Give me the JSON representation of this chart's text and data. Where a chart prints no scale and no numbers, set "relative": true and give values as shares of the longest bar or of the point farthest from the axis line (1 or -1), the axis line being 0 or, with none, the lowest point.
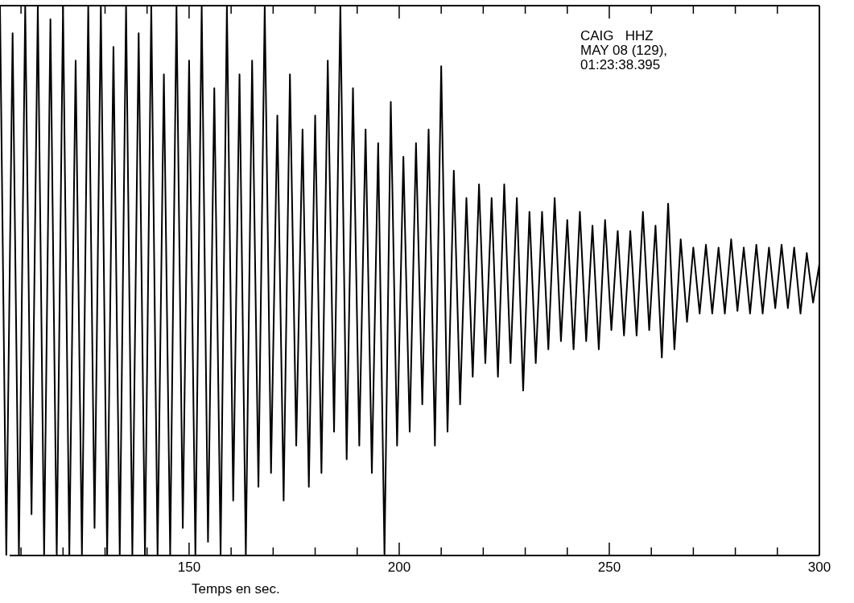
{
  "chart_data": {
    "type": "line",
    "relative": true,
    "xlabel": "Temps en sec.",
    "annotations": [
      "CAIG   HHZ",
      "MAY 08 (129),",
      "01:23:38.395"
    ],
    "xlim": [
      105,
      300
    ],
    "xticks": [
      {
        "value": 110,
        "label": null
      },
      {
        "value": 120,
        "label": null
      },
      {
        "value": 130,
        "label": null
      },
      {
        "value": 140,
        "label": null
      },
      150,
      {
        "value": 160,
        "label": null
      },
      {
        "value": 170,
        "label": null
      },
      {
        "value": 180,
        "label": null
      },
      {
        "value": 190,
        "label": null
      },
      200,
      {
        "value": 210,
        "label": null
      },
      {
        "value": 220,
        "label": null
      },
      {
        "value": 230,
        "label": null
      },
      {
        "value": 240,
        "label": null
      },
      250,
      {
        "value": 260,
        "label": null
      },
      {
        "value": 270,
        "label": null
      },
      {
        "value": 280,
        "label": null
      },
      {
        "value": 290,
        "label": null
      },
      300
    ],
    "grid": false,
    "marker": "none",
    "line_style": "solid",
    "series": [
      {
        "color": "#000000",
        "x": [
          105,
          106.5,
          108,
          109.5,
          111,
          112.5,
          114,
          115.5,
          117,
          118.5,
          120,
          121.5,
          123,
          124.5,
          126,
          127.5,
          129,
          130.5,
          132,
          133.5,
          135,
          136.5,
          138,
          139.5,
          141,
          142.5,
          144,
          145.5,
          147,
          148.5,
          150,
          151.5,
          153,
          154.5,
          156,
          157.5,
          159,
          160.5,
          162,
          163.5,
          165,
          166.5,
          168,
          169.5,
          171,
          172.5,
          174,
          175.5,
          177,
          178.5,
          180,
          181.5,
          183,
          184.5,
          186,
          187.5,
          189,
          190.5,
          192,
          193.5,
          195,
          196.5,
          198,
          199.5,
          201,
          202.5,
          204,
          205.5,
          207,
          208.5,
          210,
          211.5,
          213,
          214.5,
          216,
          217.5,
          219,
          220.5,
          222,
          223.5,
          225,
          226.5,
          228,
          229.5,
          231,
          232.5,
          234,
          235.5,
          237,
          238.5,
          240,
          241.5,
          243,
          244.5,
          246,
          247.5,
          249,
          250.5,
          252,
          253.5,
          255,
          256.5,
          258,
          259.5,
          261,
          262.5,
          264,
          265.5,
          267,
          268.5,
          270,
          271.5,
          273,
          274.5,
          276,
          277.5,
          279,
          280.5,
          282,
          283.5,
          285,
          286.5,
          288,
          289.5,
          291,
          292.5,
          294,
          295.5,
          297,
          298.5,
          300
        ],
        "values": [
          1,
          0,
          0.95,
          0,
          1,
          0.075,
          1,
          0,
          0.975,
          0,
          1,
          0,
          0.9,
          0,
          1,
          0.05,
          1,
          0,
          0.925,
          0,
          1,
          0,
          0.95,
          0,
          1,
          0,
          0.875,
          0,
          1,
          0.05,
          0.9,
          0,
          1,
          0.025,
          0.85,
          0,
          1,
          0.1,
          0.875,
          0,
          0.9,
          0.125,
          1,
          0.15,
          0.8,
          0.1,
          0.875,
          0.2,
          0.775,
          0.125,
          0.8,
          0.15,
          0.9,
          0.225,
          1,
          0.175,
          0.85,
          0.2,
          0.775,
          0.15,
          0.75,
          0,
          0.825,
          0.2,
          0.725,
          0.225,
          0.75,
          0.275,
          0.775,
          0.2,
          0.89,
          0.225,
          0.7,
          0.275,
          0.65,
          0.325,
          0.675,
          0.35,
          0.65,
          0.325,
          0.675,
          0.35,
          0.65,
          0.3,
          0.625,
          0.35,
          0.625,
          0.375,
          0.65,
          0.39,
          0.61,
          0.375,
          0.625,
          0.39,
          0.6,
          0.375,
          0.61,
          0.41,
          0.59,
          0.4,
          0.59,
          0.4,
          0.625,
          0.41,
          0.6,
          0.36,
          0.64,
          0.375,
          0.575,
          0.425,
          0.56,
          0.44,
          0.565,
          0.44,
          0.56,
          0.44,
          0.575,
          0.445,
          0.56,
          0.44,
          0.565,
          0.44,
          0.56,
          0.45,
          0.565,
          0.45,
          0.56,
          0.44,
          0.55,
          0.46,
          0.53
        ]
      }
    ]
  }
}
